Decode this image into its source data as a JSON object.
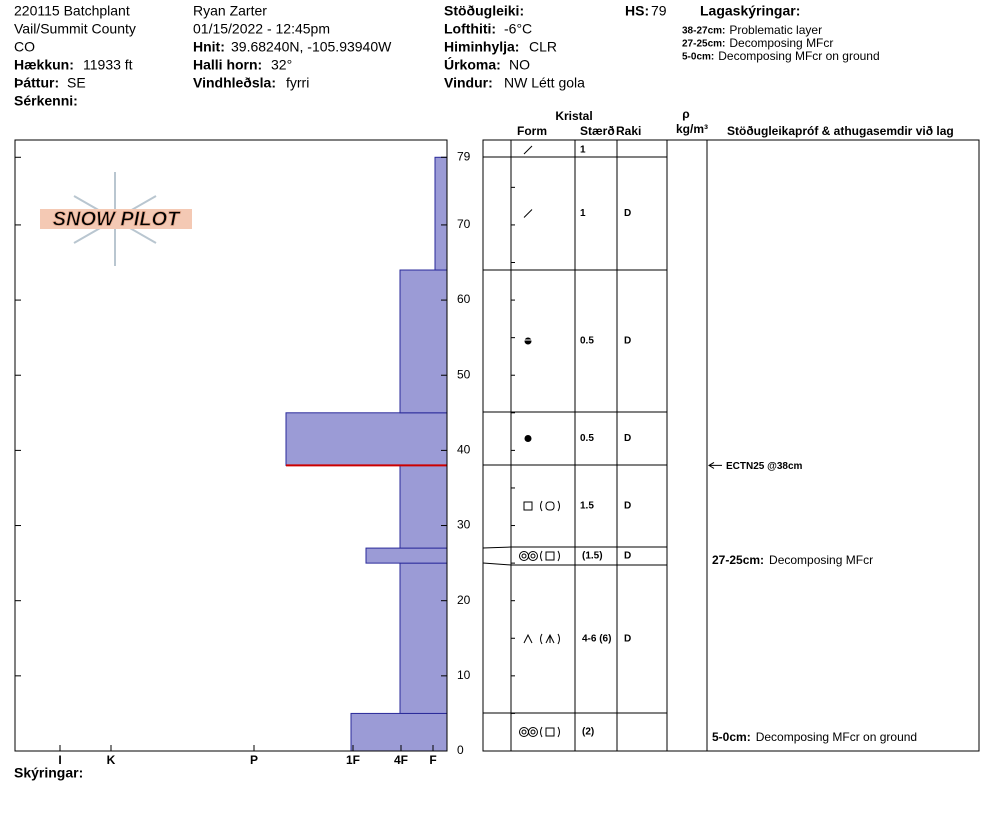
{
  "header": {
    "site": [
      "220115 Batchplant",
      "Vail/Summit County",
      "CO"
    ],
    "elevation": {
      "label": "Hækkun:",
      "value": "11933 ft"
    },
    "aspect": {
      "label": "Þáttur:",
      "value": "SE"
    },
    "specifics": {
      "label": "Sérkenni:"
    },
    "observer": "Ryan Zarter",
    "datetime": "01/15/2022 - 12:45pm",
    "coords": {
      "label": "Hnit:",
      "value": "39.68240N, -105.93940W"
    },
    "slope": {
      "label": "Halli horn:",
      "value": "32°"
    },
    "wind_loading": {
      "label": "Vindhleðsla:",
      "value": "fyrri"
    },
    "stability": {
      "label": "Stöðugleiki:"
    },
    "air_temp": {
      "label": "Lofthiti:",
      "value": "-6°C"
    },
    "sky": {
      "label": "Himinhylja:",
      "value": "CLR"
    },
    "precip": {
      "label": "Úrkoma:",
      "value": "NO"
    },
    "wind": {
      "label": "Vindur:",
      "value": "NW Létt gola"
    },
    "hs": {
      "label": "HS:",
      "value": 79
    }
  },
  "legend": {
    "title": "Lagaskýringar:",
    "items": [
      {
        "range": "38-27cm:",
        "text": "Problematic layer"
      },
      {
        "range": "27-25cm:",
        "text": "Decomposing MFcr"
      },
      {
        "range": "5-0cm:",
        "text": "Decomposing MFcr on ground"
      }
    ]
  },
  "logo": "SNOW PILOT",
  "chart_data": {
    "type": "hardness-profile",
    "ylim": [
      0,
      81.3
    ],
    "yticks": [
      0,
      10,
      20,
      30,
      40,
      50,
      60,
      70,
      79
    ],
    "xlim": [
      0,
      432
    ],
    "x_reversed": true,
    "xticks": [
      {
        "value": 387,
        "label": "I"
      },
      {
        "value": 336,
        "label": "K"
      },
      {
        "value": 193,
        "label": "P"
      },
      {
        "value": 94,
        "label": "1F"
      },
      {
        "value": 46,
        "label": "4F"
      },
      {
        "value": 14,
        "label": "F"
      }
    ],
    "color": "#9b9bd6",
    "layers": [
      {
        "bottom": 0,
        "top": 5,
        "hardness": 96
      },
      {
        "bottom": 5,
        "top": 25,
        "hardness": 47
      },
      {
        "bottom": 25,
        "top": 27,
        "hardness": 81
      },
      {
        "bottom": 27,
        "top": 38,
        "hardness": 47
      },
      {
        "bottom": 38,
        "top": 45,
        "hardness": 161
      },
      {
        "bottom": 45,
        "top": 64,
        "hardness": 47
      },
      {
        "bottom": 64,
        "top": 79,
        "hardness": 12
      }
    ],
    "highlight": 38,
    "highlight_color": "#cc0000"
  },
  "table": {
    "headers": {
      "crystal": "Kristal",
      "form": "Form",
      "size": "Stærð",
      "moisture": "Raki",
      "rho": "ρ",
      "density_unit": "kg/m³",
      "comments": "Stöðugleikapróf & athugasemdir við lag"
    },
    "rows": [
      {
        "size": "1"
      },
      {
        "size": "1",
        "moisture": "D"
      },
      {
        "size": "0.5",
        "moisture": "D"
      },
      {
        "size": "0.5",
        "moisture": "D"
      },
      {
        "size": "1.5",
        "moisture": "D"
      },
      {
        "size": "(1.5)",
        "moisture": "D"
      },
      {
        "size": "4-6 (6)",
        "moisture": "D"
      },
      {
        "size": "(2)"
      }
    ]
  },
  "test": "ECTN25 @38cm",
  "comments": [
    {
      "range": "27-25cm:",
      "text": "Decomposing MFcr"
    },
    {
      "range": "5-0cm:",
      "text": "Decomposing MFcr on ground"
    }
  ],
  "notes_label": "Skýringar:"
}
